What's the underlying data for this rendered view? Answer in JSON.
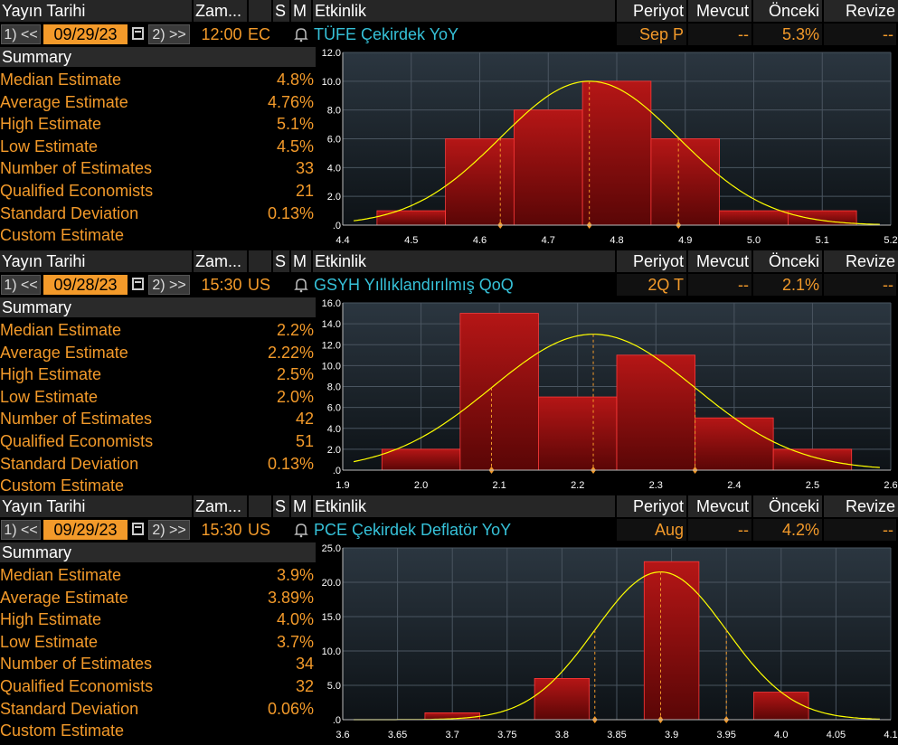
{
  "panels": [
    {
      "header": {
        "date_label": "Yayın Tarihi",
        "time_label": "Zam...",
        "s_label": "S",
        "m_label": "M",
        "event_label": "Etkinlik",
        "period_label": "Periyot",
        "actual_label": "Mevcut",
        "prior_label": "Önceki",
        "revised_label": "Revize"
      },
      "controls": {
        "prev_label": "1) <<",
        "date": "09/29/23",
        "next_label": "2) >>",
        "time": "12:00",
        "country": "EC",
        "event": "TÜFE Çekirdek YoY",
        "period": "Sep P",
        "actual": "--",
        "prior": "5.3%",
        "revised": "--"
      },
      "summary": {
        "title": "Summary",
        "rows": [
          {
            "label": "Median Estimate",
            "value": "4.8%"
          },
          {
            "label": "Average Estimate",
            "value": "4.76%"
          },
          {
            "label": "High Estimate",
            "value": "5.1%"
          },
          {
            "label": "Low Estimate",
            "value": "4.5%"
          },
          {
            "label": "Number of Estimates",
            "value": "33"
          },
          {
            "label": "Qualified Economists",
            "value": "21"
          },
          {
            "label": "Standard Deviation",
            "value": "0.13%"
          },
          {
            "label": "Custom Estimate",
            "value": ""
          }
        ]
      }
    },
    {
      "header": {
        "date_label": "Yayın Tarihi",
        "time_label": "Zam...",
        "s_label": "S",
        "m_label": "M",
        "event_label": "Etkinlik",
        "period_label": "Periyot",
        "actual_label": "Mevcut",
        "prior_label": "Önceki",
        "revised_label": "Revize"
      },
      "controls": {
        "prev_label": "1) <<",
        "date": "09/28/23",
        "next_label": "2) >>",
        "time": "15:30",
        "country": "US",
        "event": "GSYH Yıllıklandırılmış QoQ",
        "period": "2Q T",
        "actual": "--",
        "prior": "2.1%",
        "revised": "--"
      },
      "summary": {
        "title": "Summary",
        "rows": [
          {
            "label": "Median Estimate",
            "value": "2.2%"
          },
          {
            "label": "Average Estimate",
            "value": "2.22%"
          },
          {
            "label": "High Estimate",
            "value": "2.5%"
          },
          {
            "label": "Low Estimate",
            "value": "2.0%"
          },
          {
            "label": "Number of Estimates",
            "value": "42"
          },
          {
            "label": "Qualified Economists",
            "value": "51"
          },
          {
            "label": "Standard Deviation",
            "value": "0.13%"
          },
          {
            "label": "Custom Estimate",
            "value": ""
          }
        ]
      }
    },
    {
      "header": {
        "date_label": "Yayın Tarihi",
        "time_label": "Zam...",
        "s_label": "S",
        "m_label": "M",
        "event_label": "Etkinlik",
        "period_label": "Periyot",
        "actual_label": "Mevcut",
        "prior_label": "Önceki",
        "revised_label": "Revize"
      },
      "controls": {
        "prev_label": "1) <<",
        "date": "09/29/23",
        "next_label": "2) >>",
        "time": "15:30",
        "country": "US",
        "event": "PCE Çekirdek Deflatör YoY",
        "period": "Aug",
        "actual": "--",
        "prior": "4.2%",
        "revised": "--"
      },
      "summary": {
        "title": "Summary",
        "rows": [
          {
            "label": "Median Estimate",
            "value": "3.9%"
          },
          {
            "label": "Average Estimate",
            "value": "3.89%"
          },
          {
            "label": "High Estimate",
            "value": "4.0%"
          },
          {
            "label": "Low Estimate",
            "value": "3.7%"
          },
          {
            "label": "Number of Estimates",
            "value": "34"
          },
          {
            "label": "Qualified Economists",
            "value": "32"
          },
          {
            "label": "Standard Deviation",
            "value": "0.06%"
          },
          {
            "label": "Custom Estimate",
            "value": ""
          }
        ]
      }
    }
  ],
  "colors": {
    "accent": "#f39a2a",
    "event_text": "#36c1d8",
    "bar": "#a01010",
    "curve": "#ffff00",
    "marker": "#f39a2a"
  },
  "chart_data": [
    {
      "type": "bar",
      "categories": [
        4.5,
        4.6,
        4.7,
        4.8,
        4.9,
        5.0,
        5.1
      ],
      "values": [
        1,
        6,
        8,
        10,
        6,
        1,
        1
      ],
      "xticks": [
        4.4,
        4.5,
        4.6,
        4.7,
        4.8,
        4.9,
        5.0,
        5.1,
        5.2
      ],
      "xtick_labels": [
        "4.4",
        "4.5",
        "4.6",
        "4.7",
        "4.8",
        "4.9",
        "5.0",
        "5.1",
        "5.2"
      ],
      "yticks": [
        0,
        2,
        4,
        6,
        8,
        10,
        12
      ],
      "ytick_labels": [
        ".0",
        "2.0",
        "4.0",
        "6.0",
        "8.0",
        "10.0",
        "12.0"
      ],
      "xlim": [
        4.4,
        5.2
      ],
      "ylim": [
        0,
        12
      ],
      "bin_width": 0.1,
      "curve": {
        "mean": 4.76,
        "sd": 0.13,
        "peak": 10
      },
      "markers": [
        4.63,
        4.76,
        4.89
      ],
      "grid": true
    },
    {
      "type": "bar",
      "categories": [
        2.0,
        2.1,
        2.2,
        2.3,
        2.4,
        2.5
      ],
      "values": [
        2,
        15,
        7,
        11,
        5,
        2
      ],
      "xticks": [
        1.9,
        2.0,
        2.1,
        2.2,
        2.3,
        2.4,
        2.5,
        2.6
      ],
      "xtick_labels": [
        "1.9",
        "2.0",
        "2.1",
        "2.2",
        "2.3",
        "2.4",
        "2.5",
        "2.6"
      ],
      "yticks": [
        0,
        2,
        4,
        6,
        8,
        10,
        12,
        14,
        16
      ],
      "ytick_labels": [
        ".0",
        "2.0",
        "4.0",
        "6.0",
        "8.0",
        "10.0",
        "12.0",
        "14.0",
        "16.0"
      ],
      "xlim": [
        1.9,
        2.6
      ],
      "ylim": [
        0,
        16
      ],
      "bin_width": 0.1,
      "curve": {
        "mean": 2.22,
        "sd": 0.13,
        "peak": 13
      },
      "markers": [
        2.09,
        2.22,
        2.35
      ],
      "grid": true
    },
    {
      "type": "bar",
      "categories": [
        3.7,
        3.8,
        3.9,
        4.0
      ],
      "values": [
        1,
        6,
        23,
        4
      ],
      "xticks": [
        3.6,
        3.65,
        3.7,
        3.75,
        3.8,
        3.85,
        3.9,
        3.95,
        4.0,
        4.05,
        4.1
      ],
      "xtick_labels": [
        "3.6",
        "3.65",
        "3.7",
        "3.75",
        "3.8",
        "3.85",
        "3.9",
        "3.95",
        "4.0",
        "4.05",
        "4.1"
      ],
      "yticks": [
        0,
        5,
        10,
        15,
        20,
        25
      ],
      "ytick_labels": [
        ".0",
        "5.0",
        "10.0",
        "15.0",
        "20.0",
        "25.0"
      ],
      "xlim": [
        3.6,
        4.1
      ],
      "ylim": [
        0,
        25
      ],
      "bin_width": 0.05,
      "curve": {
        "mean": 3.89,
        "sd": 0.06,
        "peak": 21.5
      },
      "markers": [
        3.83,
        3.89,
        3.95
      ],
      "grid": true
    }
  ]
}
